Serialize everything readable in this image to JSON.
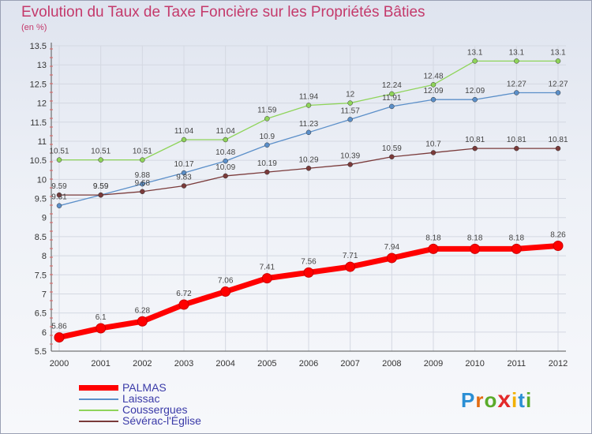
{
  "title": "Evolution du Taux de Taxe Foncière sur les Propriétés Bâties",
  "subtitle": "(en %)",
  "logo": {
    "text": "ProXiti",
    "letters": [
      "P",
      "r",
      "o",
      "x",
      "i",
      "t",
      "i"
    ],
    "colors": [
      "#2b8fd4",
      "#e36c12",
      "#5aab2a",
      "#e32a2a",
      "#f2b000",
      "#2b8fd4",
      "#5aab2a"
    ]
  },
  "chart_data": {
    "type": "line",
    "x": [
      "2000",
      "2001",
      "2002",
      "2003",
      "2004",
      "2005",
      "2006",
      "2007",
      "2008",
      "2009",
      "2010",
      "2011",
      "2012"
    ],
    "ylim": [
      5.5,
      13.5
    ],
    "yticks": [
      "5.5",
      "6",
      "6.5",
      "7",
      "7.5",
      "8",
      "8.5",
      "9",
      "9.5",
      "10",
      "10.5",
      "11",
      "11.5",
      "12",
      "12.5",
      "13",
      "13.5"
    ],
    "grid": true,
    "legend_position": "bottom-left",
    "series": [
      {
        "name": "PALMAS",
        "color": "#ff0000",
        "values": [
          5.86,
          6.1,
          6.28,
          6.72,
          7.06,
          7.41,
          7.56,
          7.71,
          7.94,
          8.18,
          8.18,
          8.18,
          8.26
        ],
        "labels": [
          "5.86",
          "6.1",
          "6.28",
          "6.72",
          "7.06",
          "7.41",
          "7.56",
          "7.71",
          "7.94",
          "8.18",
          "8.18",
          "8.18",
          "8.26"
        ]
      },
      {
        "name": "Laissac",
        "color": "#5b8fc9",
        "values": [
          9.31,
          9.59,
          9.88,
          10.17,
          10.48,
          10.9,
          11.23,
          11.57,
          11.91,
          12.09,
          12.09,
          12.27,
          12.27
        ],
        "labels": [
          "9.31",
          "9.59",
          "9.88",
          "10.17",
          "10.48",
          "10.9",
          "11.23",
          "11.57",
          "11.91",
          "12.09",
          "12.09",
          "12.27",
          "12.27"
        ]
      },
      {
        "name": "Coussergues",
        "color": "#8fd45a",
        "values": [
          10.51,
          10.51,
          10.51,
          11.04,
          11.04,
          11.59,
          11.94,
          12,
          12.24,
          12.48,
          13.1,
          13.1,
          13.1
        ],
        "labels": [
          "10.51",
          "10.51",
          "10.51",
          "11.04",
          "11.04",
          "11.59",
          "11.94",
          "12",
          "12.24",
          "12.48",
          "13.1",
          "13.1",
          "13.1"
        ]
      },
      {
        "name": "Sévérac-l'Église",
        "color": "#7a3a3a",
        "values": [
          9.59,
          9.59,
          9.68,
          9.83,
          10.09,
          10.19,
          10.29,
          10.39,
          10.59,
          10.7,
          10.81,
          10.81,
          10.81
        ],
        "labels": [
          "9.59",
          "9.59",
          "9.68",
          "9.83",
          "10.09",
          "10.19",
          "10.29",
          "10.39",
          "10.59",
          "10.7",
          "10.81",
          "10.81",
          "10.81"
        ]
      }
    ]
  },
  "legend": [
    {
      "label": "PALMAS",
      "color": "#ff0000"
    },
    {
      "label": "Laissac",
      "color": "#5b8fc9"
    },
    {
      "label": "Coussergues",
      "color": "#8fd45a"
    },
    {
      "label": "Sévérac-l'Église",
      "color": "#7a3a3a"
    }
  ]
}
